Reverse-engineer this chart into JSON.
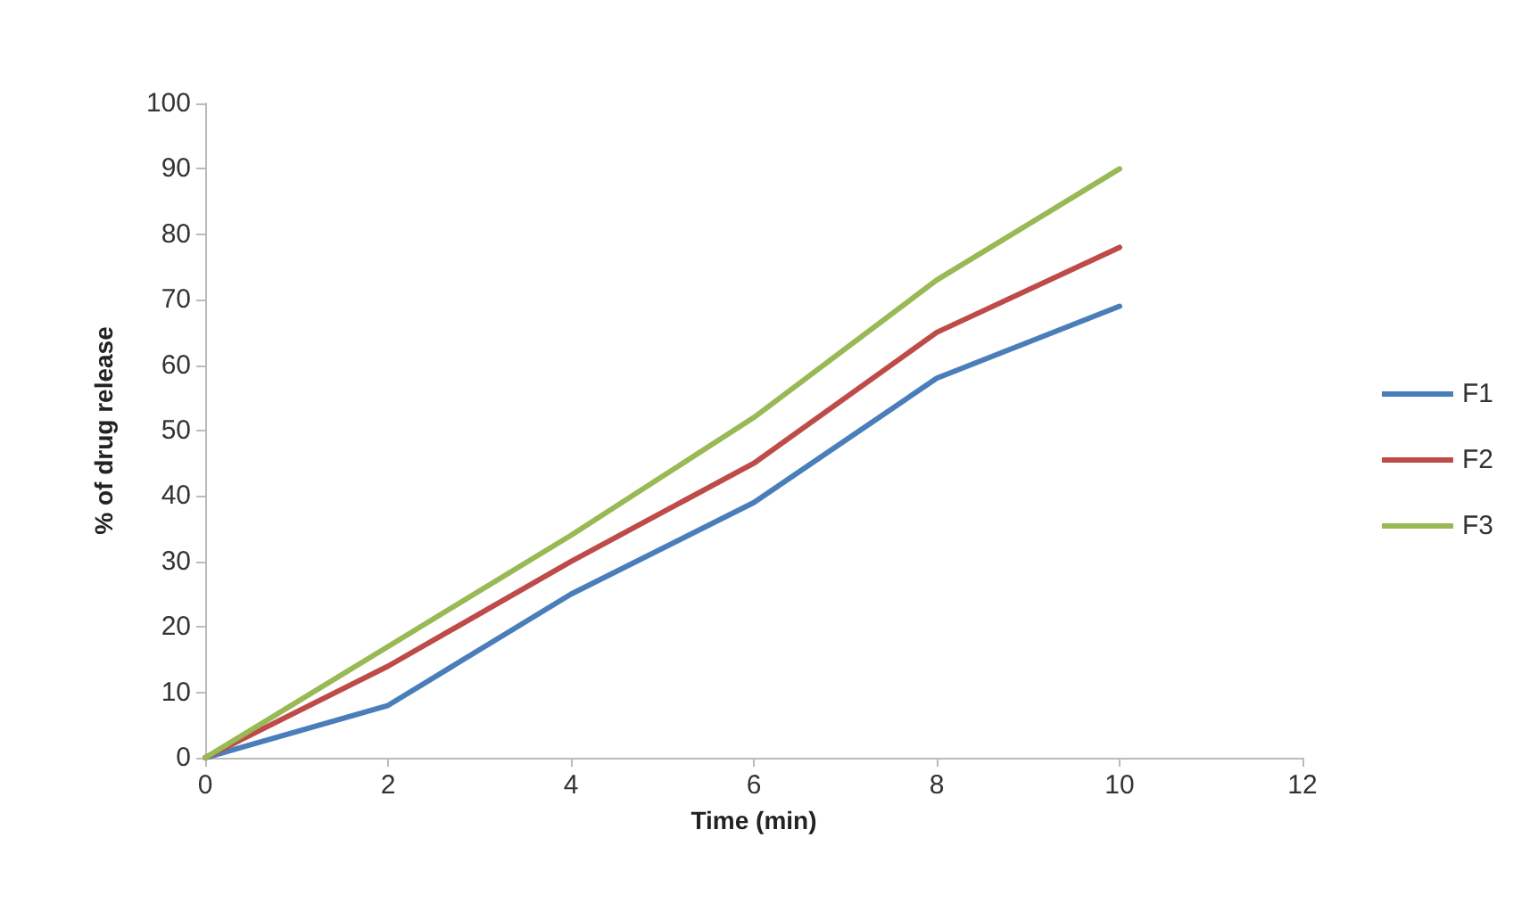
{
  "chart_data": {
    "type": "line",
    "xlabel": "Time (min)",
    "ylabel": "% of drug release",
    "x": [
      0,
      2,
      4,
      6,
      8,
      10
    ],
    "series": [
      {
        "name": "F1",
        "color": "#4a7ebb",
        "values": [
          0,
          8,
          25,
          39,
          58,
          69
        ]
      },
      {
        "name": "F2",
        "color": "#be4b48",
        "values": [
          0,
          14,
          30,
          45,
          65,
          78
        ]
      },
      {
        "name": "F3",
        "color": "#98b954",
        "values": [
          0,
          17,
          34,
          52,
          73,
          90
        ]
      }
    ],
    "xlim": [
      0,
      12
    ],
    "xticks": [
      0,
      2,
      4,
      6,
      8,
      10,
      12
    ],
    "ylim": [
      0,
      100
    ],
    "yticks": [
      0,
      10,
      20,
      30,
      40,
      50,
      60,
      70,
      80,
      90,
      100
    ],
    "grid": false,
    "legend": "right",
    "marker": "none",
    "line_style": "solid"
  }
}
